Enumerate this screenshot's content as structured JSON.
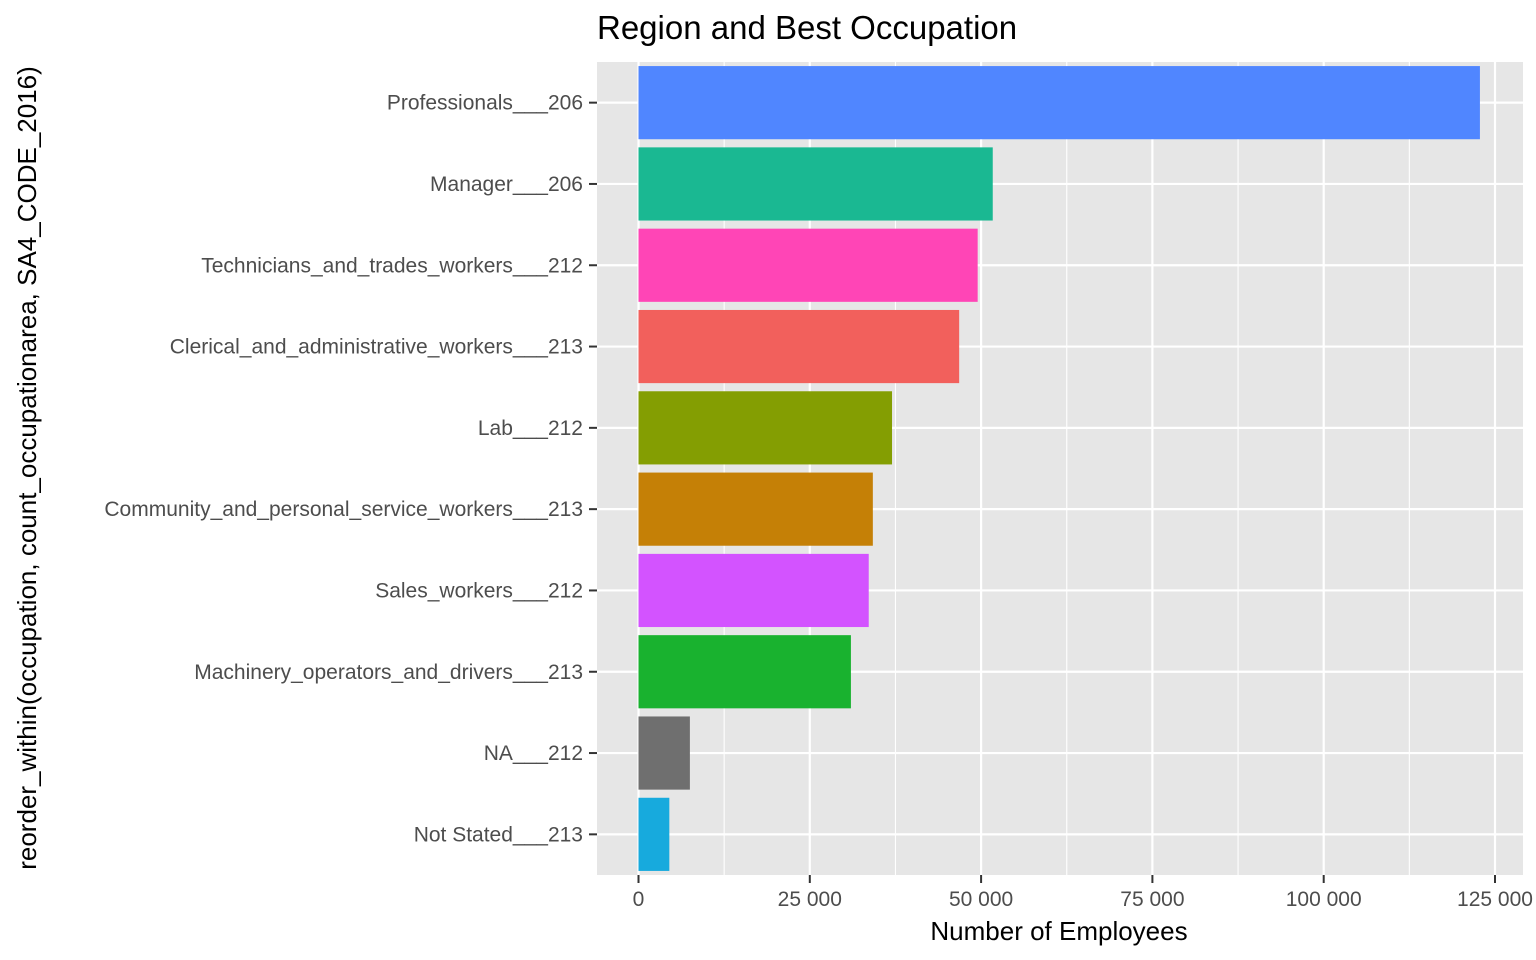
{
  "chart_data": {
    "type": "bar",
    "orientation": "horizontal",
    "title": "Region and Best Occupation",
    "xlabel": "Number of Employees",
    "ylabel": "reorder_within(occupation, count_occupationarea, SA4_CODE_2016)",
    "xlim": [
      0,
      125000
    ],
    "xticks": [
      0,
      25000,
      50000,
      75000,
      100000,
      125000
    ],
    "xtick_labels": [
      "0",
      "25 000",
      "50 000",
      "75 000",
      "100 000",
      "125 000"
    ],
    "grid": true,
    "legend": "none",
    "categories": [
      "Professionals___206",
      "Manager___206",
      "Technicians_and_trades_workers___212",
      "Clerical_and_administrative_workers___213",
      "Lab___212",
      "Community_and_personal_service_workers___213",
      "Sales_workers___212",
      "Machinery_operators_and_drivers___213",
      "NA___212",
      "Not Stated___213"
    ],
    "values": [
      122800,
      51700,
      49500,
      46800,
      37000,
      34200,
      33600,
      31000,
      7500,
      4500
    ],
    "colors": [
      "#5086FF",
      "#1AB892",
      "#FF45B6",
      "#F2605C",
      "#849E02",
      "#C58006",
      "#D353FF",
      "#19B22F",
      "#6F6F6F",
      "#17AADD"
    ]
  },
  "style": {
    "panel_background": "#e6e6e6",
    "grid_color": "#ffffff",
    "tick_color": "#333333"
  }
}
